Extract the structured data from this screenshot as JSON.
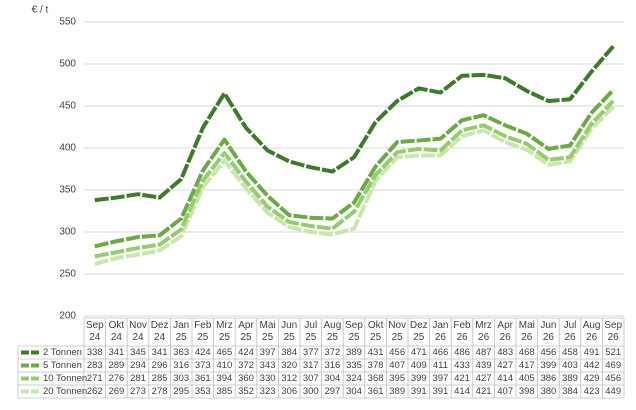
{
  "chart_data": {
    "type": "line",
    "y_label": "€ / t",
    "categories": [
      "Sep 24",
      "Okt 24",
      "Nov 24",
      "Dez 24",
      "Jan 25",
      "Feb 25",
      "Mrz 25",
      "Apr 25",
      "Mai 25",
      "Jun 25",
      "Jul 25",
      "Aug 25",
      "Sep 25",
      "Okt 25",
      "Nov 25",
      "Dez 25",
      "Jan 26",
      "Feb 26",
      "Mrz 26",
      "Apr 26",
      "Mai 26",
      "Jun 26",
      "Jul 26",
      "Aug 26",
      "Sep 26"
    ],
    "series": [
      {
        "name": "2 Tonnen",
        "color": "#3d7a2a",
        "values": [
          338,
          341,
          345,
          341,
          363,
          424,
          465,
          424,
          397,
          384,
          377,
          372,
          389,
          431,
          456,
          471,
          466,
          486,
          487,
          483,
          468,
          456,
          458,
          491,
          521
        ]
      },
      {
        "name": "5 Tonnen",
        "color": "#6aab45",
        "values": [
          283,
          289,
          294,
          296,
          316,
          373,
          410,
          372,
          343,
          320,
          317,
          316,
          335,
          378,
          407,
          409,
          411,
          433,
          439,
          427,
          417,
          399,
          403,
          442,
          469
        ]
      },
      {
        "name": "10 Tonnen",
        "color": "#97cc6e",
        "values": [
          271,
          276,
          281,
          285,
          303,
          361,
          394,
          360,
          330,
          312,
          307,
          304,
          324,
          368,
          395,
          399,
          397,
          421,
          427,
          414,
          405,
          386,
          389,
          429,
          456
        ]
      },
      {
        "name": "20 Tonnen",
        "color": "#c9e6b0",
        "values": [
          262,
          269,
          273,
          278,
          295,
          353,
          385,
          352,
          323,
          306,
          300,
          297,
          304,
          361,
          389,
          391,
          391,
          414,
          421,
          407,
          398,
          380,
          384,
          423,
          449
        ]
      }
    ],
    "ylim": [
      200,
      550
    ],
    "yticks": [
      200,
      250,
      300,
      350,
      400,
      450,
      500,
      550
    ],
    "grid": true
  }
}
